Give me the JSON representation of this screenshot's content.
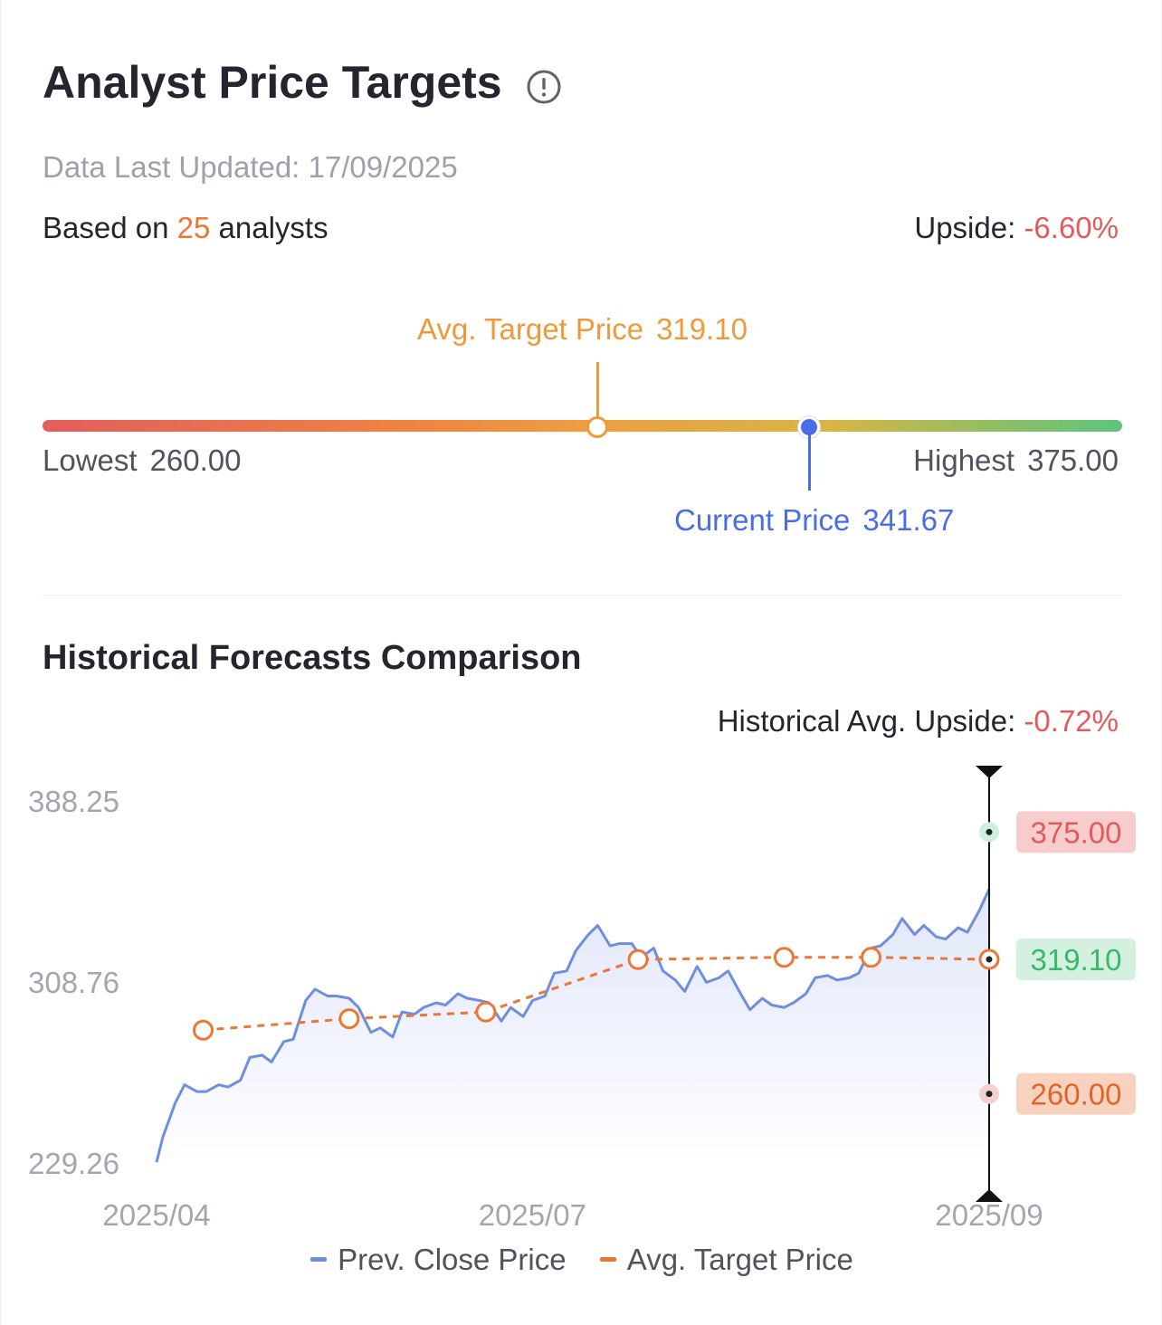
{
  "header": {
    "title": "Analyst Price Targets",
    "info_icon": "info-circle-icon",
    "data_updated_label": "Data Last Updated:",
    "data_updated_value": "17/09/2025",
    "based_on_prefix": "Based on",
    "analyst_count": "25",
    "based_on_suffix": "analysts",
    "upside_label": "Upside:",
    "upside_value": "-6.60%"
  },
  "range": {
    "avg_label": "Avg. Target Price",
    "avg_value": 319.1,
    "avg_value_text": "319.10",
    "lowest_label": "Lowest",
    "lowest_value": 260.0,
    "lowest_value_text": "260.00",
    "highest_label": "Highest",
    "highest_value": 375.0,
    "highest_value_text": "375.00",
    "current_label": "Current Price",
    "current_value": 341.67,
    "current_value_text": "341.67",
    "colors": {
      "low": "#e35d5d",
      "high": "#5ec47e",
      "avg": "#ee9a3a",
      "current": "#4a6de5"
    }
  },
  "historical": {
    "title": "Historical Forecasts Comparison",
    "upside_label": "Historical Avg. Upside:",
    "upside_value": "-0.72%"
  },
  "chart_data": {
    "type": "line",
    "title": "",
    "xlabel": "",
    "ylabel": "",
    "x_ticks": [
      "2025/04",
      "2025/07",
      "2025/09"
    ],
    "y_ticks": [
      "388.25",
      "308.76",
      "229.26"
    ],
    "ylim": [
      229.26,
      388.25
    ],
    "grid": false,
    "legend_position": "bottom",
    "series": [
      {
        "name": "Prev. Close Price",
        "color": "#6f8ee0",
        "style": "solid-area",
        "points": [
          [
            "2025-04-01",
            230
          ],
          [
            "2025-04-03",
            241
          ],
          [
            "2025-04-07",
            256
          ],
          [
            "2025-04-10",
            264
          ],
          [
            "2025-04-14",
            261
          ],
          [
            "2025-04-17",
            261
          ],
          [
            "2025-04-21",
            264
          ],
          [
            "2025-04-24",
            263
          ],
          [
            "2025-04-28",
            266
          ],
          [
            "2025-05-01",
            276
          ],
          [
            "2025-05-05",
            277
          ],
          [
            "2025-05-08",
            274
          ],
          [
            "2025-05-12",
            283
          ],
          [
            "2025-05-15",
            284
          ],
          [
            "2025-05-19",
            301
          ],
          [
            "2025-05-22",
            306
          ],
          [
            "2025-05-26",
            303
          ],
          [
            "2025-05-29",
            303
          ],
          [
            "2025-06-02",
            302
          ],
          [
            "2025-06-05",
            298
          ],
          [
            "2025-06-09",
            287
          ],
          [
            "2025-06-12",
            289
          ],
          [
            "2025-06-16",
            285
          ],
          [
            "2025-06-19",
            296
          ],
          [
            "2025-06-23",
            295
          ],
          [
            "2025-06-26",
            298
          ],
          [
            "2025-06-30",
            300
          ],
          [
            "2025-07-03",
            299
          ],
          [
            "2025-07-07",
            304
          ],
          [
            "2025-07-10",
            302
          ],
          [
            "2025-07-14",
            301
          ],
          [
            "2025-07-17",
            300
          ],
          [
            "2025-07-21",
            292
          ],
          [
            "2025-07-24",
            298
          ],
          [
            "2025-07-28",
            294
          ],
          [
            "2025-07-31",
            301
          ],
          [
            "2025-08-04",
            303
          ],
          [
            "2025-08-07",
            313
          ],
          [
            "2025-08-11",
            314
          ],
          [
            "2025-08-14",
            323
          ],
          [
            "2025-08-18",
            330
          ],
          [
            "2025-08-21",
            334
          ],
          [
            "2025-08-25",
            325
          ],
          [
            "2025-08-28",
            326
          ],
          [
            "2025-09-01",
            326
          ],
          [
            "2025-09-04",
            320
          ],
          [
            "2025-09-08",
            324
          ],
          [
            "2025-09-11",
            314
          ],
          [
            "2025-09-15",
            310
          ],
          [
            "2025-09-18",
            305
          ],
          [
            "2025-09-22",
            316
          ],
          [
            "2025-09-25",
            309
          ],
          [
            "2025-09-29",
            311
          ],
          [
            "2025-10-02",
            314
          ],
          [
            "2025-10-06",
            304
          ],
          [
            "2025-10-09",
            297
          ],
          [
            "2025-10-13",
            302
          ],
          [
            "2025-10-16",
            299
          ],
          [
            "2025-10-20",
            298
          ],
          [
            "2025-10-23",
            300
          ],
          [
            "2025-10-27",
            304
          ],
          [
            "2025-10-30",
            311
          ],
          [
            "2025-11-03",
            312
          ],
          [
            "2025-11-06",
            310
          ],
          [
            "2025-11-10",
            311
          ],
          [
            "2025-11-13",
            313
          ],
          [
            "2025-11-17",
            324
          ],
          [
            "2025-11-20",
            325
          ],
          [
            "2025-11-24",
            330
          ],
          [
            "2025-11-27",
            337
          ],
          [
            "2025-12-01",
            330
          ],
          [
            "2025-12-04",
            334
          ],
          [
            "2025-12-08",
            329
          ],
          [
            "2025-12-11",
            328
          ],
          [
            "2025-12-15",
            333
          ],
          [
            "2025-12-18",
            331
          ],
          [
            "2025-12-22",
            341
          ],
          [
            "2025-12-25",
            350
          ]
        ]
      },
      {
        "name": "Avg. Target Price",
        "color": "#ee7634",
        "style": "dashed-markers",
        "points": [
          [
            "2025-04-16",
            288
          ],
          [
            "2025-06-02",
            293
          ],
          [
            "2025-07-16",
            296
          ],
          [
            "2025-09-03",
            319
          ],
          [
            "2025-10-20",
            320
          ],
          [
            "2025-11-17",
            320
          ]
        ]
      }
    ],
    "latest_markers": {
      "highest": {
        "text": "375.00",
        "value": 375.0,
        "text_color": "#e35a5a",
        "bg": "#f6cccc",
        "dot_color": "#cfeedd"
      },
      "avg": {
        "text": "319.10",
        "value": 319.1,
        "text_color": "#38b86b",
        "bg": "#d4f1df"
      },
      "lowest": {
        "text": "260.00",
        "value": 260.0,
        "text_color": "#e0652a",
        "bg": "#f6d2bf",
        "dot_color": "#f4d0d3"
      }
    },
    "colors": {
      "line": "#6f8ee0",
      "area": "#e4e9fb",
      "target": "#ee7634"
    }
  },
  "legend": {
    "items": [
      {
        "label": "Prev. Close Price",
        "color": "#6f8ee0"
      },
      {
        "label": "Avg. Target Price",
        "color": "#ee7634"
      }
    ]
  }
}
